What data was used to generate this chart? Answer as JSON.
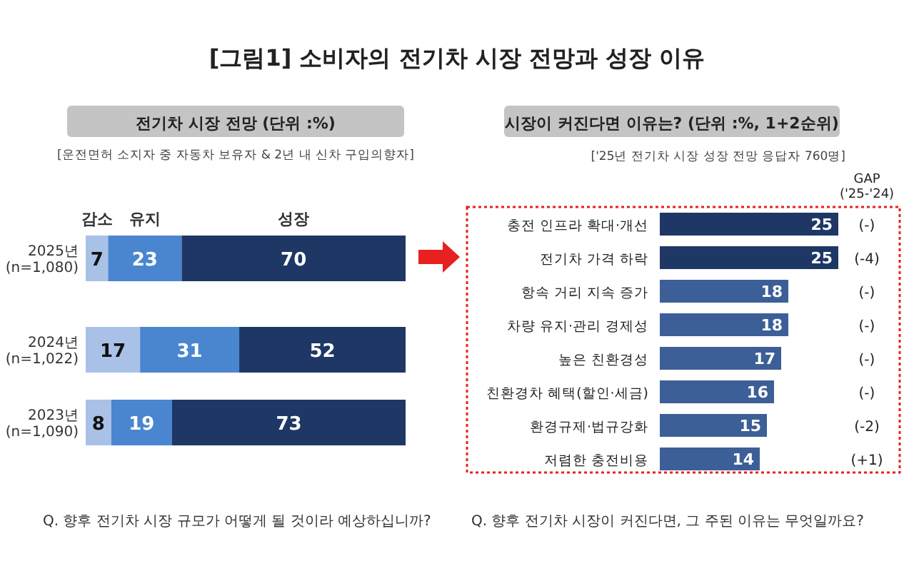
{
  "chart_data": [
    {
      "type": "bar",
      "orientation": "horizontal",
      "stacked": true,
      "data_labels": true,
      "legend": "top",
      "title": "전기차 시장 전망 (단위 :%)",
      "subtitle": "[운전면허 소지자 중 자동차 보유자 & 2년 내 신차 구입의향자]",
      "annotations": [
        "[그림1] 소비자의 전기차 시장 전망과 성장 이유",
        "Q. 향후 전기차 시장 규모가 어떻게 될 것이라 예상하십니까?"
      ],
      "categories": [
        "2025년\n(n=1,080)",
        "2024년\n(n=1,022)",
        "2023년\n(n=1,090)"
      ],
      "series": [
        {
          "name": "감소",
          "color": "#a9c1e6",
          "values": [
            7,
            17,
            8
          ]
        },
        {
          "name": "유지",
          "color": "#4a86d0",
          "values": [
            23,
            31,
            19
          ]
        },
        {
          "name": "성장",
          "color": "#1e3764",
          "values": [
            70,
            52,
            73
          ]
        }
      ]
    },
    {
      "type": "bar",
      "orientation": "horizontal",
      "data_labels": true,
      "title": "시장이 커진다면 이유는? (단위 :%, 1+2순위)",
      "subtitle": "['25년 전기차 시장 성장 전망 응답자 760명]",
      "categories": [
        "충전 인프라 확대·개선",
        "전기차 가격 하락",
        "항속 거리 지속 증가",
        "차량 유지·관리 경제성",
        "높은 친환경성",
        "친환경차 혜택(할인·세금)",
        "환경규제·법규강화",
        "저렴한 충전비용"
      ],
      "values": [
        25,
        25,
        18,
        18,
        17,
        16,
        15,
        14
      ],
      "colors": [
        "#1e3764",
        "#1e3764",
        "#3d5f97",
        "#3d5f97",
        "#3d5f97",
        "#3d5f97",
        "#3d5f97",
        "#3d5f97"
      ],
      "annotations": [
        "GAP\n('25-'24)",
        "Q. 향후 전기차 시장이 커진다면, 그 주된 이유는 무엇일까요?",
        "(-)",
        "(-4)",
        "(-)",
        "(-)",
        "(-)",
        "(-)",
        "(-2)",
        "(+1)"
      ]
    }
  ]
}
